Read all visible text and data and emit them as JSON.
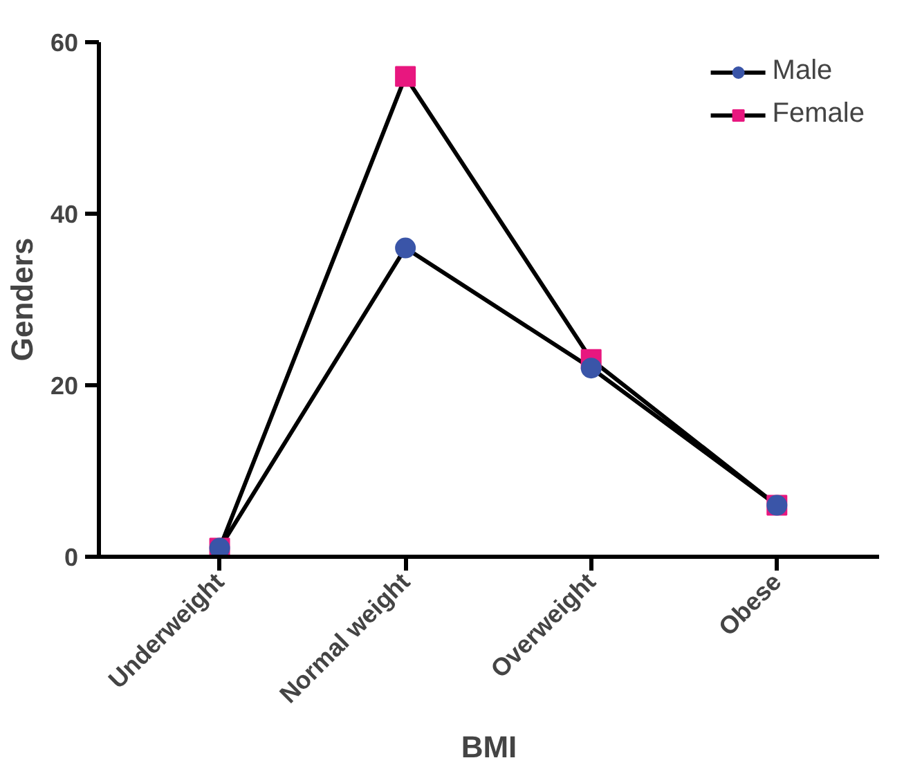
{
  "chart_data": {
    "type": "line",
    "xlabel": "BMI",
    "ylabel": "Genders",
    "categories": [
      "Underweight",
      "Normal weight",
      "Overweight",
      "Obese"
    ],
    "series": [
      {
        "name": "Male",
        "color": "#3a55a8",
        "marker": "circle",
        "values": [
          1,
          36,
          22,
          6
        ]
      },
      {
        "name": "Female",
        "color": "#e8177f",
        "marker": "square",
        "values": [
          1,
          56,
          23,
          6
        ]
      }
    ],
    "ylim": [
      0,
      60
    ],
    "yticks": [
      0,
      20,
      40,
      60
    ],
    "grid": false,
    "legend": "top right"
  }
}
